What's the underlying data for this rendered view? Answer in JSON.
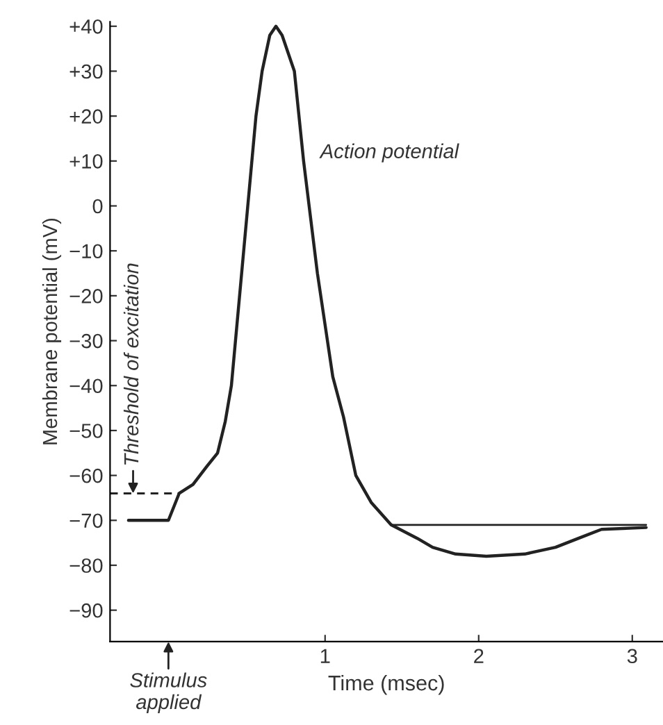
{
  "chart_data": {
    "type": "line",
    "xlabel": "Time (msec)",
    "ylabel": "Membrane potential (mV)",
    "xlim": [
      -0.4,
      3.2
    ],
    "ylim": [
      -97,
      41
    ],
    "xticks": [
      1,
      2,
      3
    ],
    "yticks": [
      {
        "value": 40,
        "label": "+40"
      },
      {
        "value": 30,
        "label": "+30"
      },
      {
        "value": 20,
        "label": "+20"
      },
      {
        "value": 10,
        "label": "+10"
      },
      0,
      {
        "value": -10,
        "label": "−10"
      },
      {
        "value": -20,
        "label": "−20"
      },
      {
        "value": -30,
        "label": "−30"
      },
      {
        "value": -40,
        "label": "−40"
      },
      {
        "value": -50,
        "label": "−50"
      },
      {
        "value": -60,
        "label": "−60"
      },
      {
        "value": -70,
        "label": "−70"
      },
      {
        "value": -80,
        "label": "−80"
      },
      {
        "value": -90,
        "label": "−90"
      }
    ],
    "grid": false,
    "legend": false,
    "marker": "none",
    "series": [
      {
        "color": "#222222",
        "line_style": "solid",
        "x": [
          -0.28,
          -0.02,
          0.05,
          0.14,
          0.23,
          0.3,
          0.35,
          0.39,
          0.47,
          0.55,
          0.59,
          0.64,
          0.68,
          0.72,
          0.8,
          0.86,
          0.95,
          1.05,
          1.12,
          1.2,
          1.3,
          1.43,
          1.6,
          1.7,
          1.85,
          2.05,
          2.3,
          2.5,
          2.65,
          2.8,
          3.09
        ],
        "values": [
          -70,
          -70,
          -64,
          -62,
          -58,
          -55,
          -48,
          -40,
          -10,
          20,
          30,
          38,
          40,
          38,
          30,
          10,
          -15,
          -38,
          -47,
          -60,
          -66,
          -71,
          -74,
          -76,
          -77.5,
          -78,
          -77.5,
          -76,
          -74,
          -72,
          -71.6
        ]
      },
      {
        "color": "#222222",
        "line_style": "dashed",
        "x": [
          -0.4,
          0.05
        ],
        "values": [
          -64,
          -64
        ]
      },
      {
        "color": "#222222",
        "line_style": "solid",
        "x": [
          1.43,
          3.09
        ],
        "values": [
          -71,
          -71
        ]
      }
    ],
    "annotations": [
      "Action potential",
      {
        "text": "Threshold of excitation",
        "x": -0.25,
        "y": -64
      },
      "Stimulus applied"
    ]
  }
}
